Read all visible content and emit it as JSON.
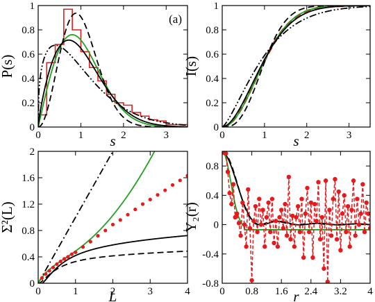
{
  "chart_data": [
    {
      "id": "a",
      "type": "line",
      "panel_label": "(a)",
      "xlabel": "s",
      "ylabel": "P(s)",
      "xlim": [
        0,
        3.5
      ],
      "ylim": [
        0,
        1
      ],
      "xticks": [
        0,
        1,
        2,
        3
      ],
      "yticks": [
        0,
        0.2,
        0.4,
        0.6,
        0.8,
        1
      ],
      "xtick_labels": [
        "0",
        "1",
        "2",
        "3"
      ],
      "ytick_labels": [
        "0",
        "0.2",
        "0.4",
        "0.6",
        "0.8",
        "1"
      ],
      "histogram": {
        "color": "#e41a1c",
        "bin_edges": [
          0,
          0.2,
          0.4,
          0.6,
          0.8,
          1.0,
          1.2,
          1.4,
          1.6,
          1.8,
          2.0,
          2.2,
          2.4,
          2.6,
          2.8,
          3.0,
          3.5
        ],
        "heights": [
          0.1,
          0.53,
          0.68,
          0.97,
          0.8,
          0.62,
          0.49,
          0.38,
          0.27,
          0.2,
          0.18,
          0.12,
          0.09,
          0.06,
          0.05,
          0.02
        ]
      },
      "series": [
        {
          "style": "solid",
          "color": "#22a022",
          "model": "goe",
          "xmax": 3.5
        },
        {
          "style": "solid",
          "color": "#000000",
          "model": "brody",
          "param": 0.8,
          "xmax": 3.5
        },
        {
          "style": "dashed",
          "color": "#000000",
          "model": "gue",
          "xmax": 3.5
        },
        {
          "style": "dashdotdot",
          "color": "#000000",
          "model": "brody",
          "param": 0.35,
          "xmax": 3.5
        }
      ]
    },
    {
      "id": "b",
      "type": "line",
      "xlabel": "s",
      "ylabel": "I(s)",
      "xlim": [
        0,
        3.5
      ],
      "ylim": [
        0,
        1
      ],
      "xticks": [
        0,
        1,
        2,
        3
      ],
      "yticks": [
        0,
        0.2,
        0.4,
        0.6,
        0.8,
        1
      ],
      "xtick_labels": [
        "0",
        "1",
        "2",
        "3"
      ],
      "ytick_labels": [
        "0",
        "0.2",
        "0.4",
        "0.6",
        "0.8",
        "1"
      ],
      "series": [
        {
          "style": "thick-dashed",
          "color": "#e41a1c",
          "model": "brody-cum",
          "param": 0.95,
          "xmax": 3.5
        },
        {
          "style": "solid",
          "color": "#22a022",
          "model": "goe-cum",
          "xmax": 3.5
        },
        {
          "style": "solid",
          "color": "#000000",
          "model": "brody-cum",
          "param": 0.8,
          "xmax": 3.5
        },
        {
          "style": "dashed",
          "color": "#000000",
          "model": "gue-cum",
          "xmax": 3.5
        },
        {
          "style": "dashdotdot",
          "color": "#000000",
          "model": "brody-cum",
          "param": 0.35,
          "xmax": 3.5
        }
      ]
    },
    {
      "id": "c",
      "type": "line",
      "xlabel": "L",
      "ylabel": "Σ²(L)",
      "xlim": [
        0,
        4
      ],
      "ylim": [
        0,
        2
      ],
      "xticks": [
        0,
        1,
        2,
        3,
        4
      ],
      "yticks": [
        0,
        0.4,
        0.8,
        1.2,
        1.6,
        2
      ],
      "xtick_labels": [
        "0",
        "1",
        "2",
        "3",
        "4"
      ],
      "ytick_labels": [
        "0",
        "0.4",
        "0.8",
        "1.2",
        "1.6",
        "2"
      ],
      "points": {
        "color": "#e41a1c",
        "x": [
          0.1,
          0.2,
          0.3,
          0.4,
          0.5,
          0.6,
          0.7,
          0.8,
          0.9,
          1.0,
          1.2,
          1.4,
          1.6,
          1.8,
          2.0,
          2.2,
          2.4,
          2.6,
          2.8,
          3.0,
          3.2,
          3.4,
          3.6,
          3.8,
          4.0
        ],
        "y": [
          0.08,
          0.14,
          0.19,
          0.24,
          0.29,
          0.33,
          0.37,
          0.4,
          0.44,
          0.47,
          0.55,
          0.63,
          0.72,
          0.8,
          0.89,
          0.96,
          1.04,
          1.12,
          1.2,
          1.27,
          1.34,
          1.41,
          1.49,
          1.56,
          1.63
        ]
      },
      "series": [
        {
          "style": "dashdot",
          "color": "#000000",
          "model": "poisson",
          "xmax": 4
        },
        {
          "style": "solid",
          "color": "#22a022",
          "model": "mixed",
          "xmax": 4
        },
        {
          "style": "solid",
          "color": "#000000",
          "model": "goe-sigma",
          "xmax": 4
        },
        {
          "style": "dashed",
          "color": "#000000",
          "model": "gue-sigma",
          "xmax": 4
        }
      ]
    },
    {
      "id": "d",
      "type": "line",
      "xlabel": "r",
      "ylabel": "Y₂(r)",
      "xlim": [
        0,
        4
      ],
      "ylim": [
        -0.8,
        1
      ],
      "xticks": [
        0,
        0.8,
        1.6,
        2.4,
        3.2,
        4
      ],
      "yticks": [
        -0.8,
        -0.4,
        0,
        0.4,
        0.8
      ],
      "xtick_labels": [
        "0",
        "0.8",
        "1.6",
        "2.4",
        "3.2",
        "4"
      ],
      "ytick_labels": [
        "-0.8",
        "-0.4",
        "0",
        "0.4",
        "0.8"
      ],
      "points": {
        "color": "#e41a1c",
        "x": [
          0.05,
          0.1,
          0.15,
          0.2,
          0.25,
          0.3,
          0.35,
          0.4,
          0.45,
          0.5,
          0.55,
          0.6,
          0.65,
          0.7,
          0.75,
          0.8,
          0.85,
          0.9,
          0.95,
          1.0,
          1.05,
          1.1,
          1.15,
          1.2,
          1.25,
          1.3,
          1.35,
          1.4,
          1.45,
          1.5,
          1.55,
          1.6,
          1.65,
          1.7,
          1.75,
          1.8,
          1.85,
          1.9,
          1.95,
          2.0,
          2.05,
          2.1,
          2.15,
          2.2,
          2.25,
          2.3,
          2.35,
          2.4,
          2.45,
          2.5,
          2.55,
          2.6,
          2.65,
          2.7,
          2.75,
          2.8,
          2.85,
          2.9,
          2.95,
          3.0,
          3.05,
          3.1,
          3.15,
          3.2,
          3.25,
          3.3,
          3.35,
          3.4,
          3.45,
          3.5,
          3.55,
          3.6,
          3.65,
          3.7,
          3.75,
          3.8,
          3.85,
          3.9,
          3.95,
          4.0
        ],
        "y": [
          0.98,
          0.97,
          0.72,
          0.43,
          0.28,
          0.55,
          0.1,
          0.15,
          0.02,
          -0.15,
          0.3,
          0.0,
          -0.3,
          0.48,
          -0.05,
          -0.76,
          0.05,
          0.25,
          -0.1,
          0.35,
          0.0,
          0.2,
          -0.3,
          0.1,
          0.3,
          -0.1,
          0.35,
          -0.25,
          0.05,
          -0.3,
          0.1,
          0.2,
          -0.05,
          0.28,
          -0.15,
          0.65,
          -0.2,
          0.12,
          -0.3,
          0.1,
          0.25,
          -0.1,
          0.35,
          -0.45,
          0.15,
          0.5,
          -0.1,
          0.3,
          -0.45,
          0.28,
          0.05,
          0.58,
          -0.2,
          0.1,
          -0.6,
          0.6,
          -0.78,
          0.2,
          -0.15,
          0.35,
          0.62,
          -0.2,
          0.45,
          -0.35,
          0.15,
          0.4,
          -0.1,
          0.25,
          -0.3,
          0.2,
          0.6,
          -0.15,
          0.35,
          0.0,
          0.15,
          0.55,
          -0.1,
          0.3,
          0.15,
          -0.05
        ]
      },
      "series": [
        {
          "style": "solid",
          "color": "#000000",
          "model": "y2-goe",
          "xmax": 4
        },
        {
          "style": "dashed",
          "color": "#000000",
          "model": "y2-gue",
          "xmax": 4
        },
        {
          "style": "solid",
          "color": "#22a022",
          "model": "y2-fit",
          "xmax": 4
        }
      ]
    }
  ]
}
